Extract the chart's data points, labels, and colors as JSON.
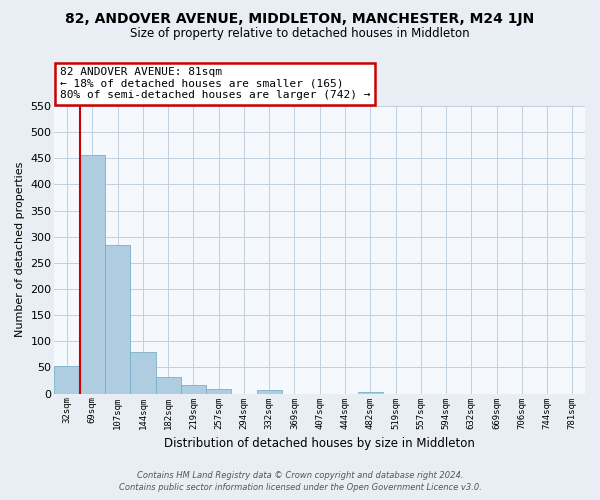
{
  "title": "82, ANDOVER AVENUE, MIDDLETON, MANCHESTER, M24 1JN",
  "subtitle": "Size of property relative to detached houses in Middleton",
  "xlabel": "Distribution of detached houses by size in Middleton",
  "ylabel": "Number of detached properties",
  "bar_labels": [
    "32sqm",
    "69sqm",
    "107sqm",
    "144sqm",
    "182sqm",
    "219sqm",
    "257sqm",
    "294sqm",
    "332sqm",
    "369sqm",
    "407sqm",
    "444sqm",
    "482sqm",
    "519sqm",
    "557sqm",
    "594sqm",
    "632sqm",
    "669sqm",
    "706sqm",
    "744sqm",
    "781sqm"
  ],
  "bar_values": [
    53,
    457,
    284,
    79,
    32,
    17,
    9,
    0,
    6,
    0,
    0,
    0,
    4,
    0,
    0,
    0,
    0,
    0,
    0,
    0,
    0
  ],
  "bar_color": "#aecde1",
  "bar_edge_color": "#7aafc8",
  "vline_color": "#cc0000",
  "vline_x_index": 1,
  "ylim": [
    0,
    550
  ],
  "yticks": [
    0,
    50,
    100,
    150,
    200,
    250,
    300,
    350,
    400,
    450,
    500,
    550
  ],
  "annotation_title": "82 ANDOVER AVENUE: 81sqm",
  "annotation_line1": "← 18% of detached houses are smaller (165)",
  "annotation_line2": "80% of semi-detached houses are larger (742) →",
  "footer_line1": "Contains HM Land Registry data © Crown copyright and database right 2024.",
  "footer_line2": "Contains public sector information licensed under the Open Government Licence v3.0.",
  "bg_color": "#e8eef4",
  "plot_bg_color": "#f5f8fc",
  "grid_color": "#c0d0e0"
}
